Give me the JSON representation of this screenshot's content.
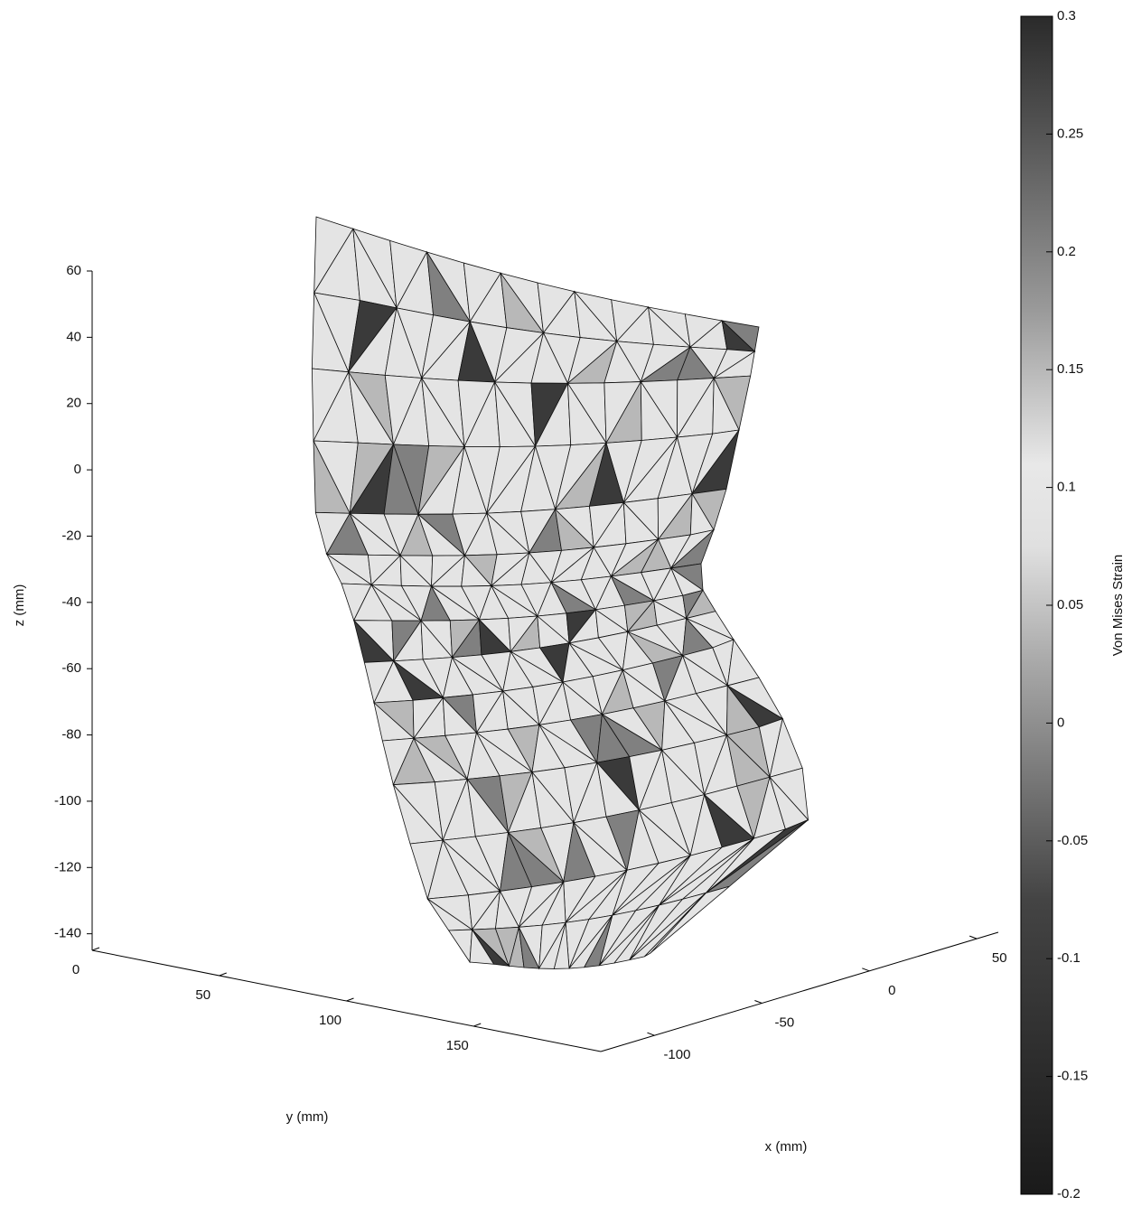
{
  "chart_data": {
    "type": "mesh3d",
    "xlabel": "x (mm)",
    "ylabel": "y (mm)",
    "zlabel": "z (mm)",
    "xlim": [
      -125,
      60
    ],
    "xticks": [
      -100,
      -50,
      0,
      50
    ],
    "ylim": [
      0,
      200
    ],
    "yticks": [
      0,
      50,
      100,
      150
    ],
    "zlim": [
      -145,
      60
    ],
    "zticks": [
      60,
      40,
      20,
      0,
      -20,
      -40,
      -60,
      -80,
      -100,
      -120,
      -140
    ],
    "colorbar": {
      "label": "Von Mises Strain",
      "clim": [
        -0.2,
        0.3
      ],
      "ticks": [
        -0.2,
        -0.15,
        -0.1,
        -0.05,
        0,
        0.05,
        0.1,
        0.15,
        0.2,
        0.25,
        0.3
      ]
    }
  }
}
